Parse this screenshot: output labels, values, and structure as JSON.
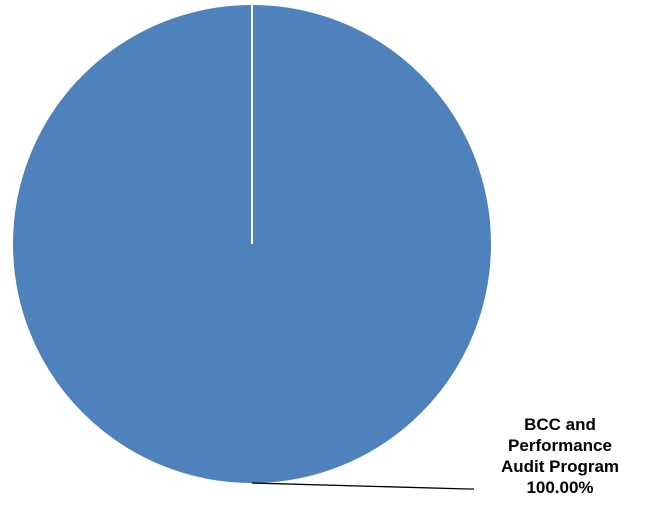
{
  "chart_data": {
    "type": "pie",
    "slices": [
      {
        "label_lines": [
          "BCC and",
          "Performance",
          "Audit Program"
        ],
        "value": 100.0,
        "percent_label": "100.00%",
        "color": "#4f81bd"
      }
    ],
    "slice_edge_color": "#ffffff",
    "leader_line_color": "#000000",
    "legend": "none"
  }
}
